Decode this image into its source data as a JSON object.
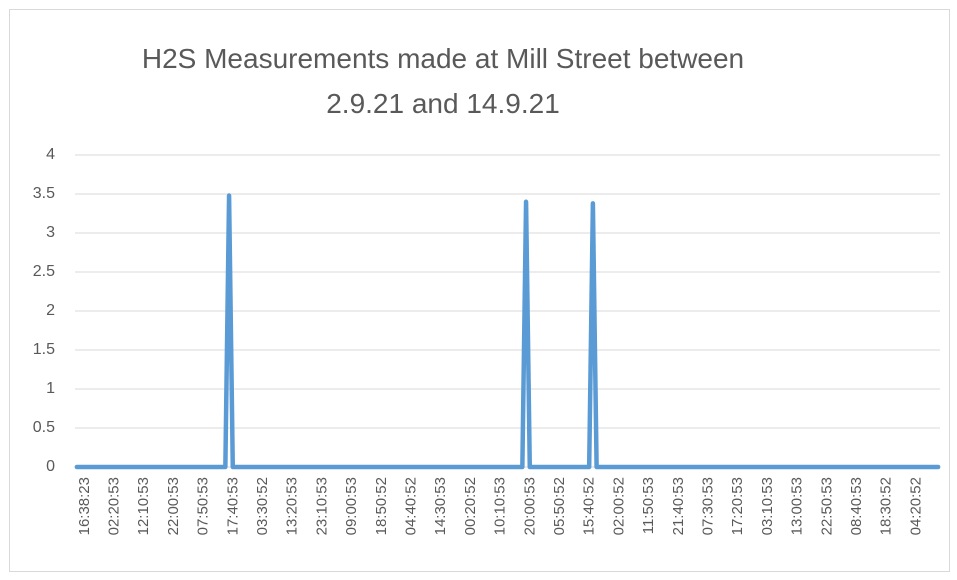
{
  "chart_data": {
    "type": "line",
    "title": "H2S Measurements made at Mill Street between 2.9.21 and 14.9.21",
    "categories": [
      "16:38:23",
      null,
      null,
      null,
      null,
      null,
      null,
      null,
      "02:20:53",
      null,
      null,
      null,
      null,
      null,
      null,
      null,
      "12:10:53",
      null,
      null,
      null,
      null,
      null,
      null,
      null,
      "22:00:53",
      null,
      null,
      null,
      null,
      null,
      null,
      null,
      "07:50:53",
      null,
      null,
      null,
      null,
      null,
      null,
      null,
      "17:40:53",
      null,
      null,
      null,
      null,
      null,
      null,
      null,
      "03:30:52",
      null,
      null,
      null,
      null,
      null,
      null,
      null,
      "13:20:53",
      null,
      null,
      null,
      null,
      null,
      null,
      null,
      "23:10:53",
      null,
      null,
      null,
      null,
      null,
      null,
      null,
      "09:00:53",
      null,
      null,
      null,
      null,
      null,
      null,
      null,
      "18:50:52",
      null,
      null,
      null,
      null,
      null,
      null,
      null,
      "04:40:52",
      null,
      null,
      null,
      null,
      null,
      null,
      null,
      "14:30:53",
      null,
      null,
      null,
      null,
      null,
      null,
      null,
      "00:20:52",
      null,
      null,
      null,
      null,
      null,
      null,
      null,
      "10:10:53",
      null,
      null,
      null,
      null,
      null,
      null,
      null,
      "20:00:53",
      null,
      null,
      null,
      null,
      null,
      null,
      null,
      "05:50:52",
      null,
      null,
      null,
      null,
      null,
      null,
      null,
      "15:40:52",
      null,
      null,
      null,
      null,
      null,
      null,
      null,
      "02:00:52",
      null,
      null,
      null,
      null,
      null,
      null,
      null,
      "11:50:53",
      null,
      null,
      null,
      null,
      null,
      null,
      null,
      "21:40:53",
      null,
      null,
      null,
      null,
      null,
      null,
      null,
      "07:30:53",
      null,
      null,
      null,
      null,
      null,
      null,
      null,
      "17:20:53",
      null,
      null,
      null,
      null,
      null,
      null,
      null,
      "03:10:53",
      null,
      null,
      null,
      null,
      null,
      null,
      null,
      "13:00:53",
      null,
      null,
      null,
      null,
      null,
      null,
      null,
      "22:50:53",
      null,
      null,
      null,
      null,
      null,
      null,
      null,
      "08:40:53",
      null,
      null,
      null,
      null,
      null,
      null,
      null,
      "18:30:52",
      null,
      null,
      null,
      null,
      null,
      null,
      null,
      "04:20:52",
      null,
      null,
      null,
      null,
      null,
      null,
      null,
      null
    ],
    "values": [
      0,
      0,
      0,
      0,
      0,
      0,
      0,
      0,
      0,
      0,
      0,
      0,
      0,
      0,
      0,
      0,
      0,
      0,
      0,
      0,
      0,
      0,
      0,
      0,
      0,
      0,
      0,
      0,
      0,
      0,
      0,
      0,
      0,
      0,
      0,
      0,
      0,
      0,
      0,
      0,
      0,
      3.48,
      0,
      0,
      0,
      0,
      0,
      0,
      0,
      0,
      0,
      0,
      0,
      0,
      0,
      0,
      0,
      0,
      0,
      0,
      0,
      0,
      0,
      0,
      0,
      0,
      0,
      0,
      0,
      0,
      0,
      0,
      0,
      0,
      0,
      0,
      0,
      0,
      0,
      0,
      0,
      0,
      0,
      0,
      0,
      0,
      0,
      0,
      0,
      0,
      0,
      0,
      0,
      0,
      0,
      0,
      0,
      0,
      0,
      0,
      0,
      0,
      0,
      0,
      0,
      0,
      0,
      0,
      0,
      0,
      0,
      0,
      0,
      0,
      0,
      0,
      0,
      0,
      0,
      0,
      0,
      3.4,
      0,
      0,
      0,
      0,
      0,
      0,
      0,
      0,
      0,
      0,
      0,
      0,
      0,
      0,
      0,
      0,
      0,
      3.38,
      0,
      0,
      0,
      0,
      0,
      0,
      0,
      0,
      0,
      0,
      0,
      0,
      0,
      0,
      0,
      0,
      0,
      0,
      0,
      0,
      0,
      0,
      0,
      0,
      0,
      0,
      0,
      0,
      0,
      0,
      0,
      0,
      0,
      0,
      0,
      0,
      0,
      0,
      0,
      0,
      0,
      0,
      0,
      0,
      0,
      0,
      0,
      0,
      0,
      0,
      0,
      0,
      0,
      0,
      0,
      0,
      0,
      0,
      0,
      0,
      0,
      0,
      0,
      0,
      0,
      0,
      0,
      0,
      0,
      0,
      0,
      0,
      0,
      0,
      0,
      0,
      0,
      0,
      0,
      0,
      0,
      0,
      0,
      0,
      0,
      0,
      0,
      0,
      0,
      0,
      0,
      0,
      0
    ],
    "color": "#5b9bd5",
    "ylim": [
      0,
      4
    ],
    "yticks": [
      0,
      0.5,
      1,
      1.5,
      2,
      2.5,
      3,
      3.5,
      4
    ],
    "grid": true
  }
}
